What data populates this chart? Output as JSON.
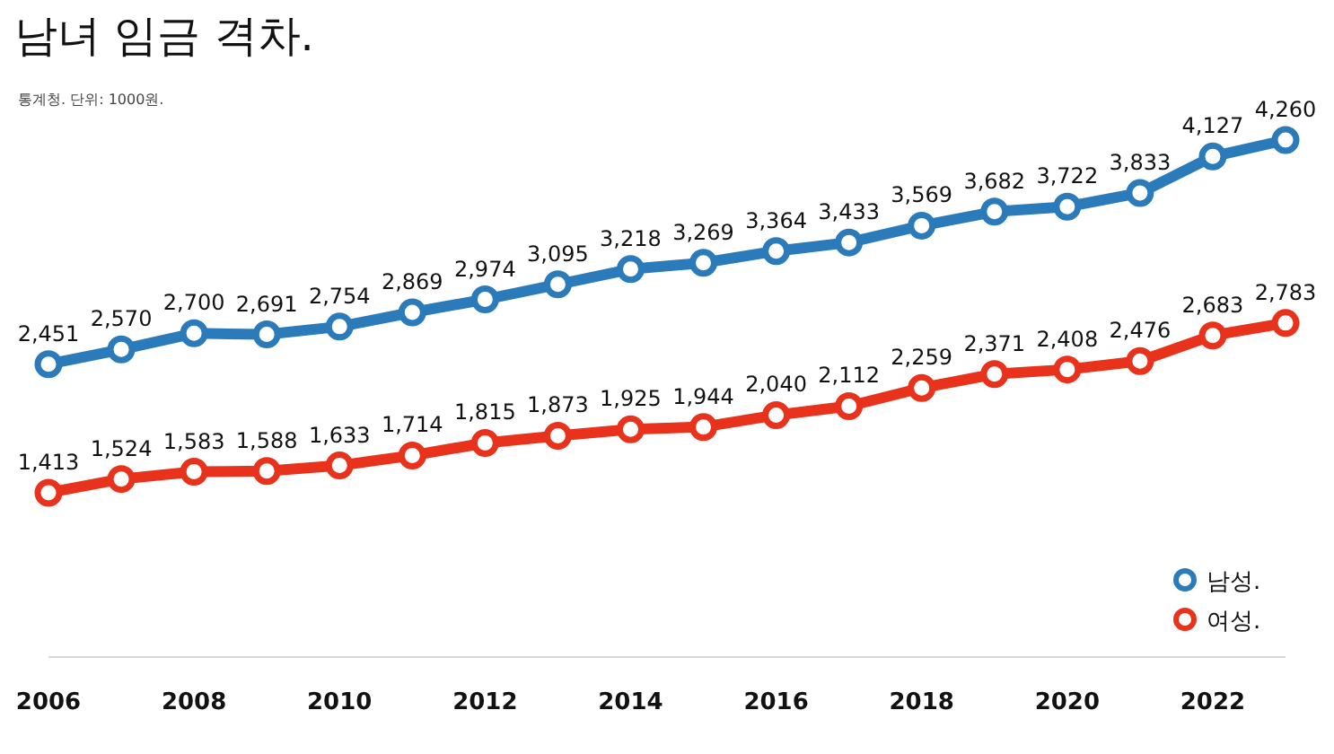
{
  "chart_data": {
    "type": "line",
    "title": "남녀 임금 격차.",
    "subtitle": "통계청. 단위: 1000원.",
    "x": [
      2006,
      2007,
      2008,
      2009,
      2010,
      2011,
      2012,
      2013,
      2014,
      2015,
      2016,
      2017,
      2018,
      2019,
      2020,
      2021,
      2022,
      2023
    ],
    "series": [
      {
        "name": "남성.",
        "color": "#2b7bba",
        "values": [
          2451,
          2570,
          2700,
          2691,
          2754,
          2869,
          2974,
          3095,
          3218,
          3269,
          3364,
          3433,
          3569,
          3682,
          3722,
          3833,
          4127,
          4260
        ],
        "value_labels": [
          "2,451",
          "2,570",
          "2,700",
          "2,691",
          "2,754",
          "2,869",
          "2,974",
          "3,095",
          "3,218",
          "3,269",
          "3,364",
          "3,433",
          "3,569",
          "3,682",
          "3,722",
          "3,833",
          "4,127",
          "4,260"
        ]
      },
      {
        "name": "여성.",
        "color": "#e8321c",
        "values": [
          1413,
          1524,
          1583,
          1588,
          1633,
          1714,
          1815,
          1873,
          1925,
          1944,
          2040,
          2112,
          2259,
          2371,
          2408,
          2476,
          2683,
          2783
        ],
        "value_labels": [
          "1,413",
          "1,524",
          "1,583",
          "1,588",
          "1,633",
          "1,714",
          "1,815",
          "1,873",
          "1,925",
          "1,944",
          "2,040",
          "2,112",
          "2,259",
          "2,371",
          "2,408",
          "2,476",
          "2,683",
          "2,783"
        ]
      }
    ],
    "xlim": [
      2006,
      2023
    ],
    "xticks": [
      2006,
      2008,
      2010,
      2012,
      2014,
      2016,
      2018,
      2020,
      2022
    ],
    "tick_labels": "x",
    "grid": false,
    "legend": "bottom right",
    "marker": "circle",
    "line_style": "solid"
  }
}
